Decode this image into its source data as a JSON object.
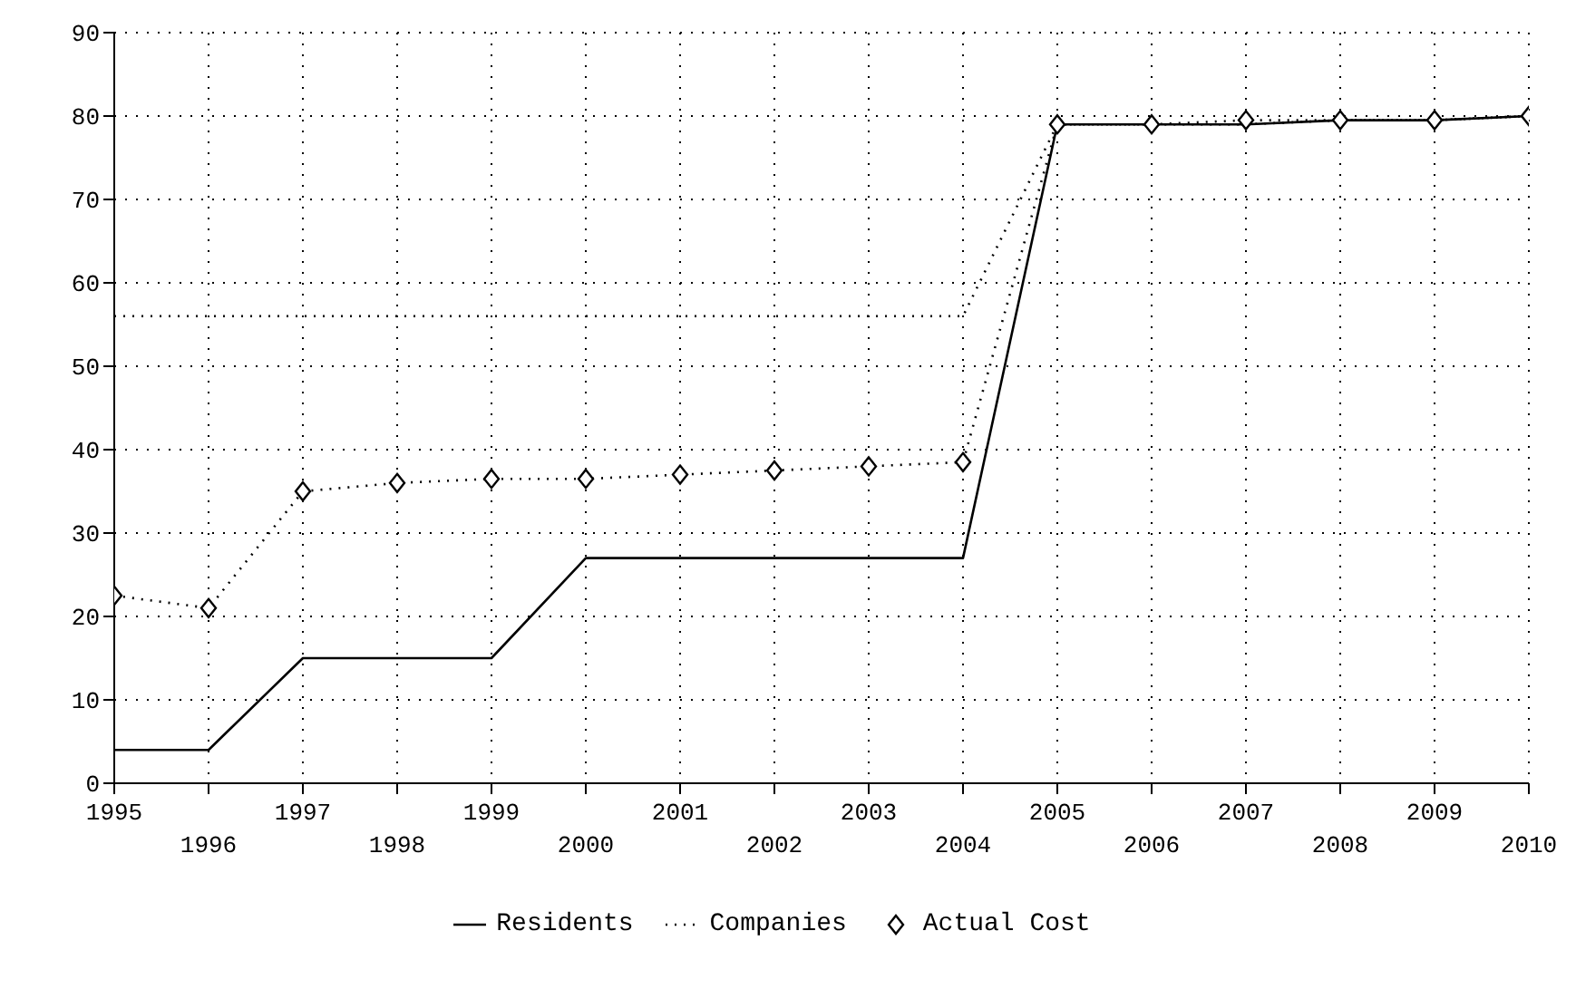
{
  "chart_data": {
    "type": "line",
    "categories": [
      "1995",
      "1996",
      "1997",
      "1998",
      "1999",
      "2000",
      "2001",
      "2002",
      "2003",
      "2004",
      "2005",
      "2006",
      "2007",
      "2008",
      "2009",
      "2010"
    ],
    "series": [
      {
        "name": "Residents",
        "color": "#000000",
        "line_style": "solid",
        "marker": "none",
        "values": [
          4,
          4,
          15,
          15,
          15,
          27,
          27,
          27,
          27,
          27,
          79,
          79,
          79,
          79.5,
          79.5,
          80
        ]
      },
      {
        "name": "Companies",
        "color": "#000000",
        "line_style": "dotted",
        "marker": "none",
        "values": [
          56,
          56,
          56,
          56,
          56,
          56,
          56,
          56,
          56,
          56,
          79,
          79,
          79,
          79.5,
          79.5,
          80
        ]
      },
      {
        "name": "Actual Cost",
        "color": "#000000",
        "line_style": "dotted",
        "marker": "diamond",
        "values": [
          22.5,
          21,
          35,
          36,
          36.5,
          36.5,
          37,
          37.5,
          38,
          38.5,
          79,
          79,
          79.5,
          79.5,
          79.5,
          80
        ]
      }
    ],
    "ylim": [
      0,
      90
    ],
    "yticks": [
      0,
      10,
      20,
      30,
      40,
      50,
      60,
      70,
      80,
      90
    ],
    "grid": true,
    "legend": "bottom"
  }
}
